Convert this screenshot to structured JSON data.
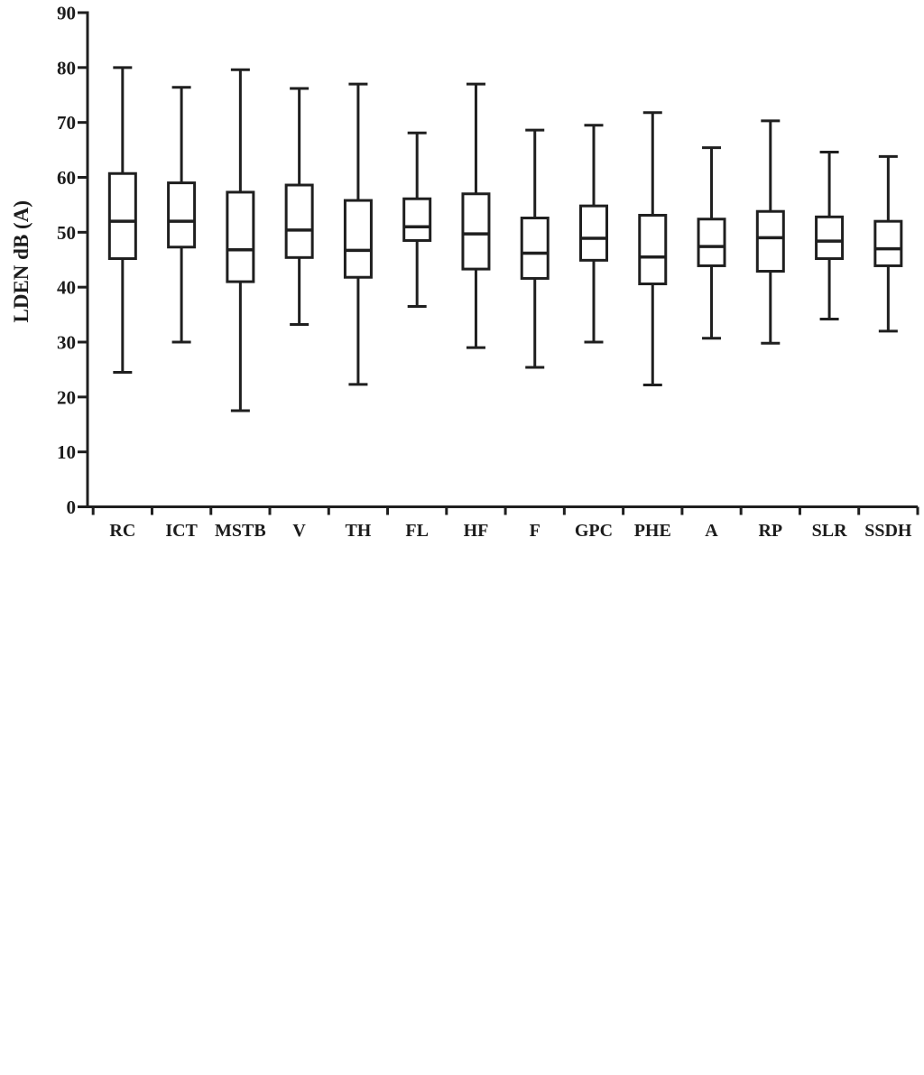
{
  "figure": {
    "background": "#ffffff",
    "line_color": "#1f1f1f",
    "text_color": "#1c1c1c"
  },
  "chart_data": {
    "type": "box",
    "title": "",
    "xlabel": "",
    "ylabel": "LDEN dB (A)",
    "ylim": [
      0,
      90
    ],
    "ytick_step": 10,
    "ytick_labels": [
      "0",
      "10",
      "20",
      "30",
      "40",
      "50",
      "60",
      "70",
      "80",
      "90"
    ],
    "grid": false,
    "legend": false,
    "categories": [
      "RC",
      "ICT",
      "MSTB",
      "V",
      "TH",
      "FL",
      "HF",
      "F",
      "GPC",
      "PHE",
      "A",
      "RP",
      "SLR",
      "SSDH"
    ],
    "series": [
      {
        "name": "RC",
        "whisker_low": 24.5,
        "q1": 45.2,
        "median": 52.0,
        "q3": 60.7,
        "whisker_high": 80.0
      },
      {
        "name": "ICT",
        "whisker_low": 30.0,
        "q1": 47.3,
        "median": 52.0,
        "q3": 59.0,
        "whisker_high": 76.4
      },
      {
        "name": "MSTB",
        "whisker_low": 17.5,
        "q1": 41.0,
        "median": 46.8,
        "q3": 57.3,
        "whisker_high": 79.6
      },
      {
        "name": "V",
        "whisker_low": 33.2,
        "q1": 45.4,
        "median": 50.4,
        "q3": 58.6,
        "whisker_high": 76.2
      },
      {
        "name": "TH",
        "whisker_low": 22.3,
        "q1": 41.8,
        "median": 46.7,
        "q3": 55.8,
        "whisker_high": 77.0
      },
      {
        "name": "FL",
        "whisker_low": 36.5,
        "q1": 48.5,
        "median": 51.0,
        "q3": 56.1,
        "whisker_high": 68.1
      },
      {
        "name": "HF",
        "whisker_low": 29.0,
        "q1": 43.3,
        "median": 49.7,
        "q3": 57.0,
        "whisker_high": 77.0
      },
      {
        "name": "F",
        "whisker_low": 25.4,
        "q1": 41.6,
        "median": 46.2,
        "q3": 52.6,
        "whisker_high": 68.6
      },
      {
        "name": "GPC",
        "whisker_low": 30.0,
        "q1": 44.9,
        "median": 48.9,
        "q3": 54.8,
        "whisker_high": 69.5
      },
      {
        "name": "PHE",
        "whisker_low": 22.2,
        "q1": 40.6,
        "median": 45.5,
        "q3": 53.1,
        "whisker_high": 71.8
      },
      {
        "name": "A",
        "whisker_low": 30.7,
        "q1": 43.9,
        "median": 47.4,
        "q3": 52.4,
        "whisker_high": 65.4
      },
      {
        "name": "RP",
        "whisker_low": 29.8,
        "q1": 42.9,
        "median": 49.0,
        "q3": 53.8,
        "whisker_high": 70.3
      },
      {
        "name": "SLR",
        "whisker_low": 34.2,
        "q1": 45.2,
        "median": 48.4,
        "q3": 52.8,
        "whisker_high": 64.6
      },
      {
        "name": "SSDH",
        "whisker_low": 32.0,
        "q1": 43.9,
        "median": 47.0,
        "q3": 52.0,
        "whisker_high": 63.8
      }
    ]
  }
}
